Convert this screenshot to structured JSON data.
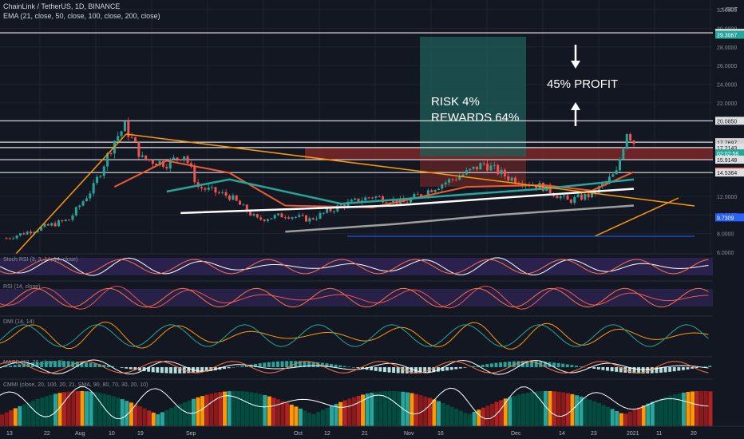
{
  "header": {
    "symbol": "ChainLink / TetherUS, 1D, BINANCE",
    "ema_label": "EMA (21, close, 50, close, 100, close, 200, close)"
  },
  "colors": {
    "bg": "#131722",
    "grid": "#1f2330",
    "up": "#26a69a",
    "down": "#ef5350",
    "ema21": "#f05a33",
    "ema50": "#26a69a",
    "ema100": "#ffffff",
    "ema200": "#9e9e9e",
    "trend": "#ff9800",
    "zone": "#8b2a2a",
    "risk_box": "#26a69a"
  },
  "axis": {
    "currency": "USDT",
    "price_ticks": [
      "32.0000",
      "30.0000",
      "28.0000",
      "26.0000",
      "24.0000",
      "22.0000",
      "18.0000",
      "12.0000",
      "10.0000",
      "8.0000",
      "6.0000"
    ],
    "time_ticks": [
      "13",
      "22",
      "Aug",
      "10",
      "19",
      "Sep",
      "Oct",
      "12",
      "21",
      "Nov",
      "16",
      "Dec",
      "14",
      "23",
      "2021",
      "11",
      "20"
    ]
  },
  "price_labels": [
    {
      "text": "29.5077",
      "kind": "line"
    },
    {
      "text": "29.3067",
      "kind": "teal"
    },
    {
      "text": "20.0850",
      "kind": "line"
    },
    {
      "text": "17.7926",
      "kind": "line"
    },
    {
      "text": "17.7697",
      "kind": "dotted"
    },
    {
      "text": "17.2143",
      "kind": "line"
    },
    {
      "text": "02:02:56",
      "kind": "teal"
    },
    {
      "text": "15.9148",
      "kind": "line"
    },
    {
      "text": "14.6528",
      "kind": "red"
    },
    {
      "text": "14.5364",
      "kind": "line"
    },
    {
      "text": "9.7309",
      "kind": "blue"
    }
  ],
  "annotations": {
    "risk": "RISK 4%",
    "rewards": "REWARDS 64%",
    "profit": "45% PROFIT"
  },
  "panes": [
    {
      "label": "Stoch RSI (3, 3, 14, 14, close)",
      "ticks": [
        "100.00",
        "0.00"
      ]
    },
    {
      "label": "RSI (14, close)",
      "ticks": [
        "0.00",
        "-100.00"
      ]
    },
    {
      "label": "DMI (14, 14)",
      "ticks": [
        "50.0000",
        "25.0000",
        "0.0000"
      ]
    },
    {
      "label": "MACD (12, 26, close, 9)",
      "ticks": [
        "1.0000",
        "0.0000"
      ]
    },
    {
      "label": "CMMI (close, 20, 100, 20, 21, SMA, 90, 80, 70, 30, 20, 10)",
      "ticks": [
        "80.0000",
        "40.0000",
        "0.0000"
      ]
    }
  ],
  "chart_data": {
    "type": "candlestick",
    "symbol": "LINKUSDT",
    "interval": "1D",
    "x_range": [
      "2020-07-13",
      "2021-01-20"
    ],
    "y_range": [
      6,
      32
    ],
    "horizontal_levels": [
      29.5077,
      20.085,
      17.7926,
      17.2143,
      15.9148,
      14.5364
    ],
    "candle_close_path": [
      {
        "x": "2020-07-13",
        "y": 7.5
      },
      {
        "x": "2020-07-22",
        "y": 8.5
      },
      {
        "x": "2020-07-31",
        "y": 9.5
      },
      {
        "x": "2020-08-07",
        "y": 13.0
      },
      {
        "x": "2020-08-13",
        "y": 18.0
      },
      {
        "x": "2020-08-16",
        "y": 19.5
      },
      {
        "x": "2020-08-21",
        "y": 16.0
      },
      {
        "x": "2020-08-28",
        "y": 15.5
      },
      {
        "x": "2020-09-02",
        "y": 16.5
      },
      {
        "x": "2020-09-06",
        "y": 13.0
      },
      {
        "x": "2020-09-15",
        "y": 12.0
      },
      {
        "x": "2020-09-23",
        "y": 9.5
      },
      {
        "x": "2020-10-01",
        "y": 10.0
      },
      {
        "x": "2020-10-08",
        "y": 9.5
      },
      {
        "x": "2020-10-17",
        "y": 11.0
      },
      {
        "x": "2020-10-26",
        "y": 12.0
      },
      {
        "x": "2020-11-04",
        "y": 11.3
      },
      {
        "x": "2020-11-13",
        "y": 13.0
      },
      {
        "x": "2020-11-22",
        "y": 14.5
      },
      {
        "x": "2020-11-27",
        "y": 15.5
      },
      {
        "x": "2020-12-04",
        "y": 14.0
      },
      {
        "x": "2020-12-14",
        "y": 13.0
      },
      {
        "x": "2020-12-21",
        "y": 11.5
      },
      {
        "x": "2020-12-28",
        "y": 12.2
      },
      {
        "x": "2021-01-04",
        "y": 14.5
      },
      {
        "x": "2021-01-07",
        "y": 19.0
      },
      {
        "x": "2021-01-09",
        "y": 17.8
      }
    ],
    "ema21": [
      {
        "x": "2020-08-13",
        "y": 13.0
      },
      {
        "x": "2020-08-28",
        "y": 15.8
      },
      {
        "x": "2020-09-15",
        "y": 14.5
      },
      {
        "x": "2020-10-01",
        "y": 11.0
      },
      {
        "x": "2020-10-26",
        "y": 10.8
      },
      {
        "x": "2020-11-22",
        "y": 13.0
      },
      {
        "x": "2020-12-14",
        "y": 13.2
      },
      {
        "x": "2020-12-28",
        "y": 12.6
      },
      {
        "x": "2021-01-09",
        "y": 14.6
      }
    ],
    "ema50": [
      {
        "x": "2020-08-28",
        "y": 12.5
      },
      {
        "x": "2020-09-15",
        "y": 13.8
      },
      {
        "x": "2020-10-17",
        "y": 11.2
      },
      {
        "x": "2020-11-22",
        "y": 12.2
      },
      {
        "x": "2020-12-14",
        "y": 12.8
      },
      {
        "x": "2021-01-09",
        "y": 13.8
      }
    ],
    "ema100": [
      {
        "x": "2020-09-01",
        "y": 10.2
      },
      {
        "x": "2020-10-01",
        "y": 10.6
      },
      {
        "x": "2020-11-01",
        "y": 11.0
      },
      {
        "x": "2020-12-01",
        "y": 11.8
      },
      {
        "x": "2021-01-09",
        "y": 12.8
      }
    ],
    "ema200": [
      {
        "x": "2020-10-01",
        "y": 8.2
      },
      {
        "x": "2020-11-01",
        "y": 9.0
      },
      {
        "x": "2020-12-01",
        "y": 10.0
      },
      {
        "x": "2021-01-09",
        "y": 11.0
      }
    ],
    "series": [
      {
        "name": "EMA 21",
        "ref": "ema21"
      },
      {
        "name": "EMA 50",
        "ref": "ema50"
      },
      {
        "name": "EMA 100",
        "ref": "ema100"
      },
      {
        "name": "EMA 200",
        "ref": "ema200"
      }
    ]
  }
}
